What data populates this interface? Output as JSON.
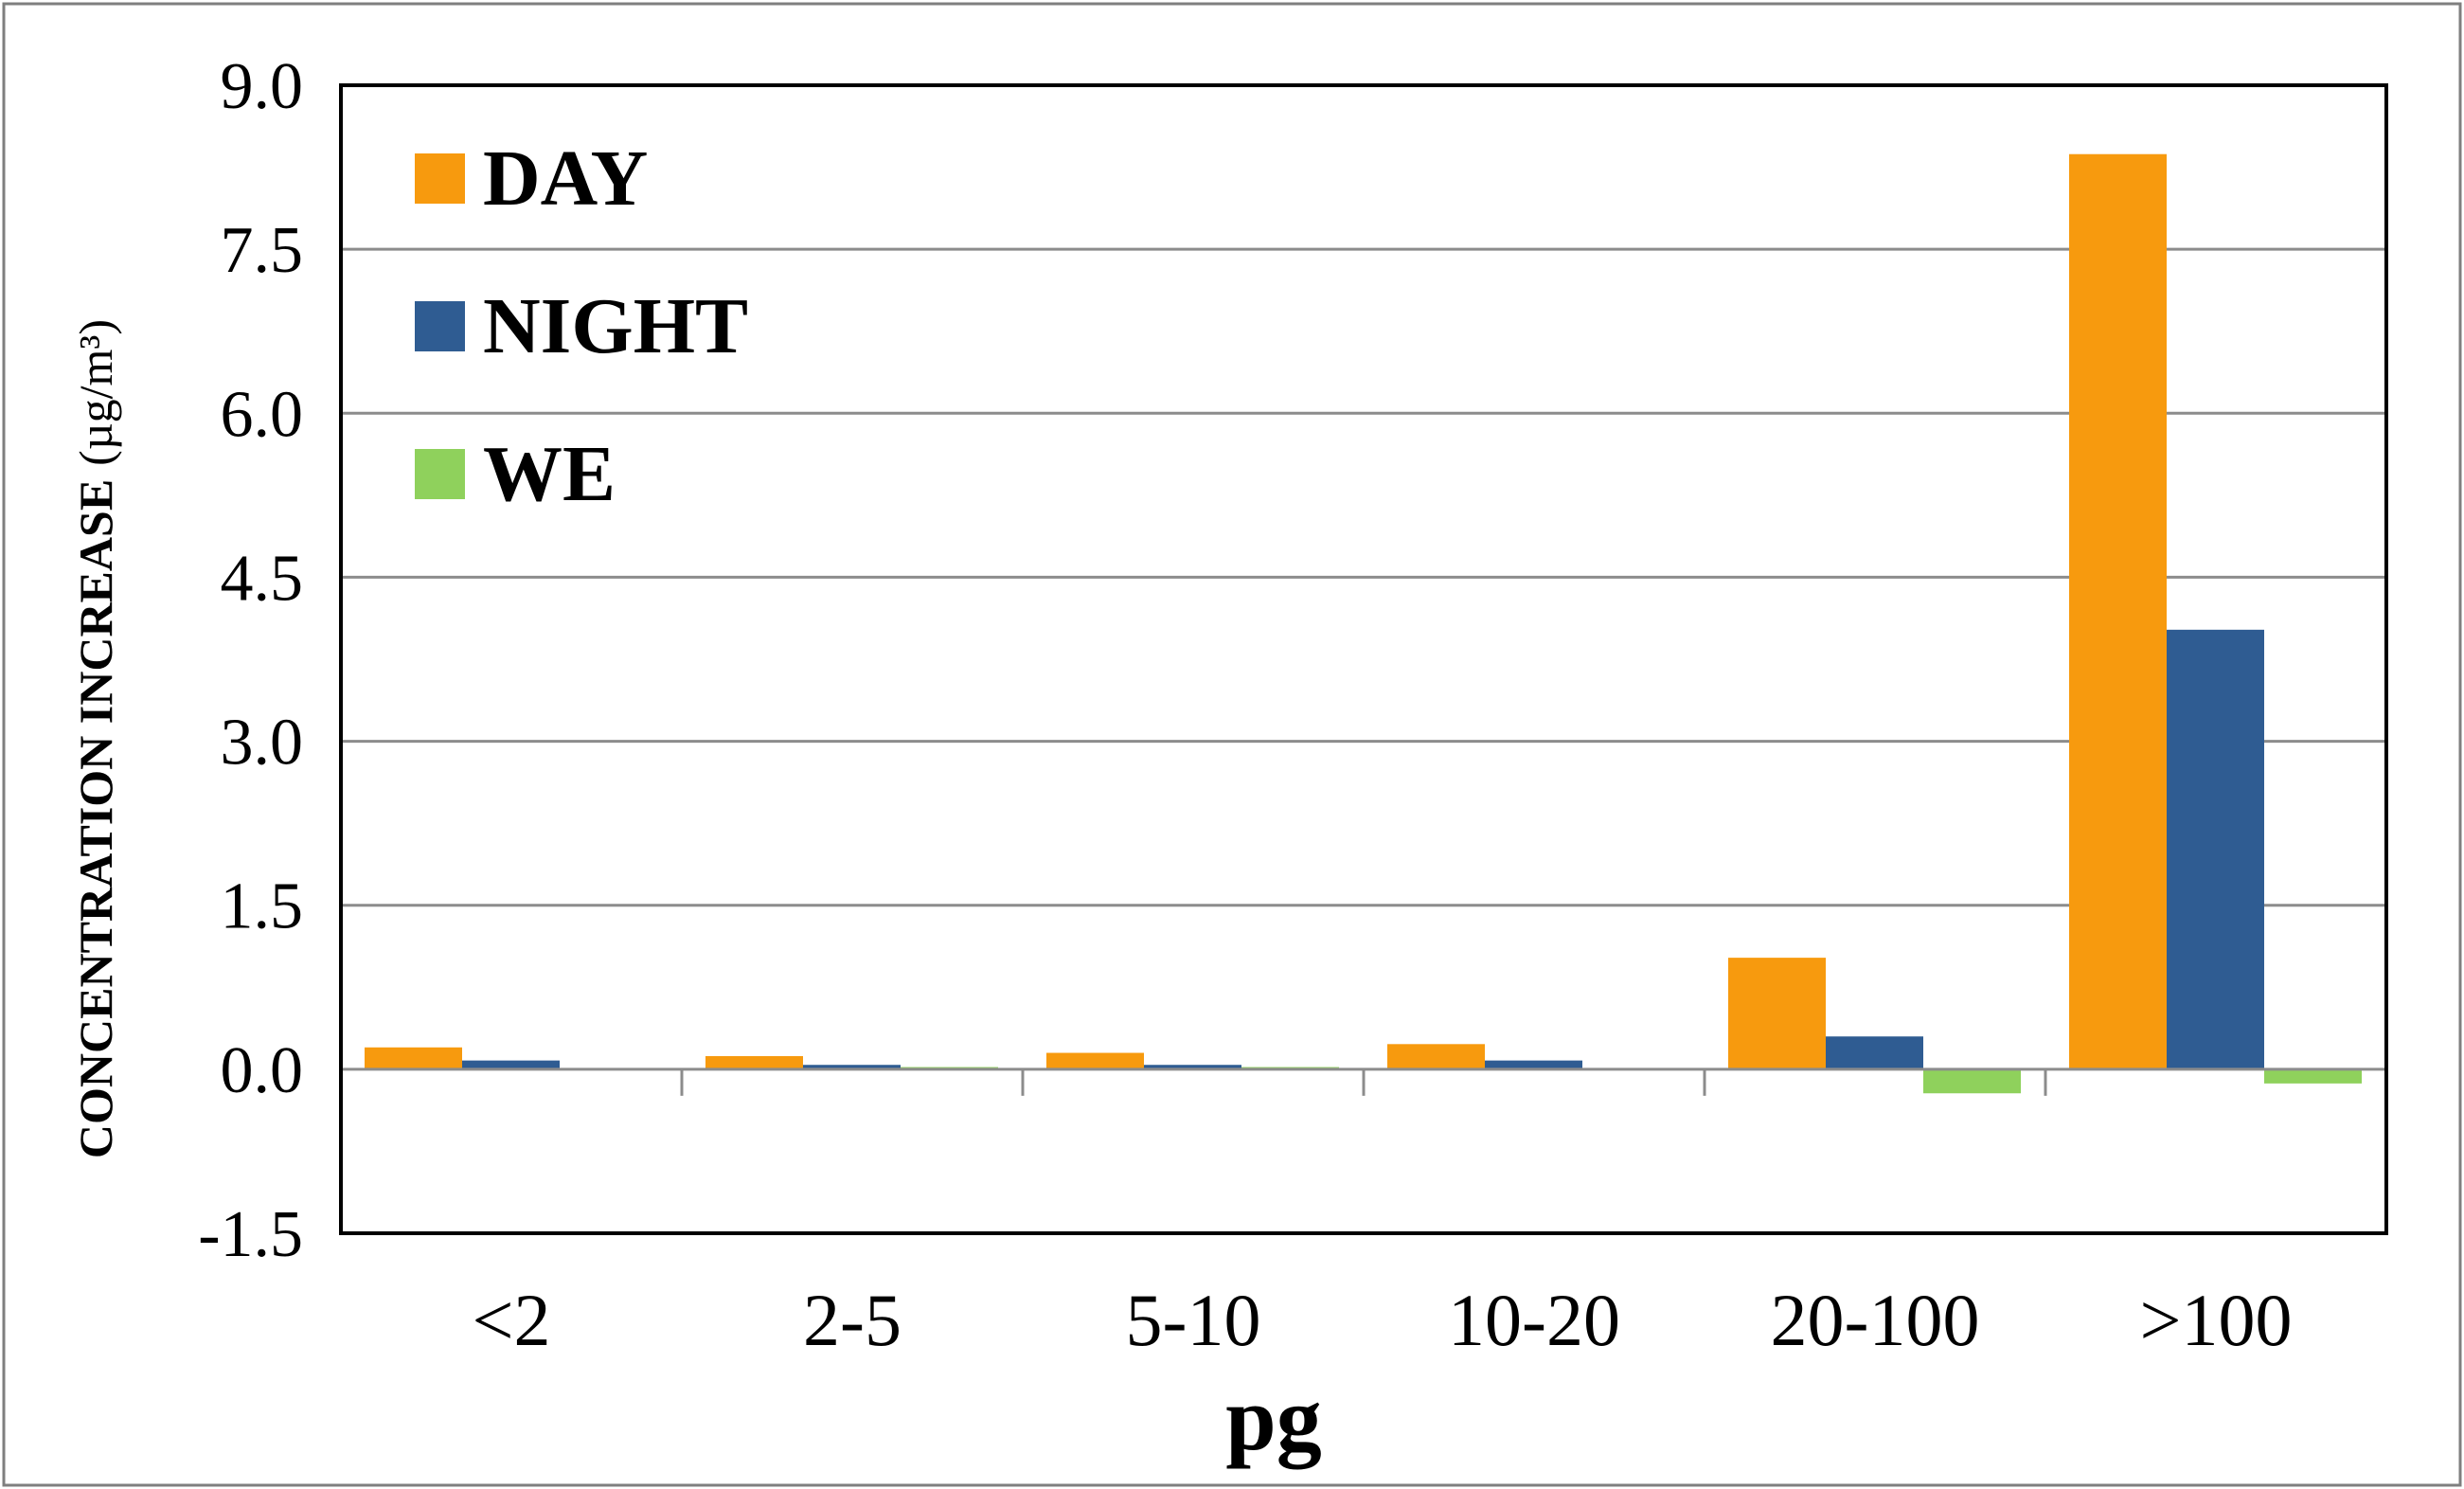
{
  "chart_data": {
    "type": "bar",
    "title": "",
    "xlabel": "pg",
    "ylabel": "CONCENTRATION INCREASE",
    "ylabel_unit": "(µg/m³)",
    "categories": [
      "<2",
      "2-5",
      "5-10",
      "10-20",
      "20-100",
      ">100"
    ],
    "series": [
      {
        "name": "DAY",
        "color": "#F79A0E",
        "values": [
          0.2,
          0.12,
          0.15,
          0.23,
          1.02,
          8.37
        ]
      },
      {
        "name": "NIGHT",
        "color": "#2F5C92",
        "values": [
          0.08,
          0.04,
          0.04,
          0.08,
          0.3,
          4.02
        ]
      },
      {
        "name": "WE",
        "color": "#8FD15C",
        "values": [
          0.0,
          0.02,
          0.02,
          0.0,
          -0.22,
          -0.13
        ]
      }
    ],
    "ylim": [
      -1.5,
      9.0
    ],
    "yticks": [
      "9.0",
      "7.5",
      "6.0",
      "4.5",
      "3.0",
      "1.5",
      "0.0",
      "-1.5"
    ],
    "ytick_values": [
      9.0,
      7.5,
      6.0,
      4.5,
      3.0,
      1.5,
      0.0,
      -1.5
    ],
    "grid": true,
    "legend_position": "top-left"
  }
}
